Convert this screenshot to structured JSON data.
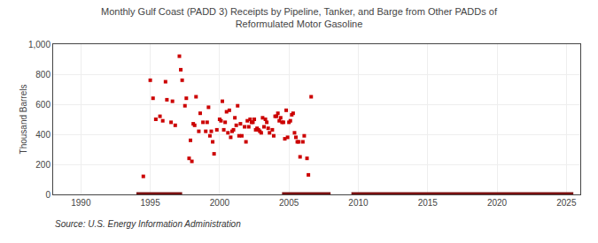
{
  "chart_data": {
    "type": "scatter",
    "title": "Monthly Gulf Coast (PADD 3) Receipts by Pipeline, Tanker, and Barge from Other PADDs of",
    "subtitle": "Reformulated Motor Gasoline",
    "ylabel": "Thousand Barrels",
    "annotations": [
      "Source: U.S. Energy Information Administration"
    ],
    "color": "#cc0000",
    "marker": "square",
    "x": [
      1994.5,
      1995.0,
      1995.2,
      1995.4,
      1995.7,
      1995.9,
      1996.1,
      1996.5,
      1996.8,
      1997.1,
      1997.3,
      1997.6,
      1997.9,
      1998.1,
      1998.3,
      1998.5,
      1998.8,
      1999.0,
      1999.2,
      1999.5,
      1999.8,
      2000.0,
      2000.2,
      2000.4,
      2000.6,
      2000.9,
      2001.1,
      2001.3,
      2001.5,
      2001.8,
      2002.0,
      2002.2,
      2002.4,
      2002.7,
      2002.9,
      2003.1,
      2003.3,
      2003.5,
      2003.8,
      2004.0,
      2004.2,
      2004.4,
      2004.6,
      2004.9,
      2005.1,
      2005.3,
      2005.5,
      2005.7,
      2006.0,
      2006.3,
      2006.6,
      1996.2,
      1996.6,
      1997.2,
      1997.5,
      1997.8,
      1998.0,
      1998.2,
      1998.6,
      1999.1,
      1999.3,
      1999.6,
      2000.1,
      2000.3,
      2000.5,
      2000.8,
      2001.0,
      2001.2,
      2001.6,
      2001.9,
      2002.1,
      2002.3,
      2002.5,
      2002.8,
      2003.0,
      2003.2,
      2003.6,
      2003.9,
      2004.1,
      2004.3,
      2004.5,
      2004.8,
      2005.0,
      2005.2,
      2005.4,
      2005.6,
      2006.1,
      2006.4,
      1999.4,
      2000.7,
      2001.4,
      2002.6,
      2003.4,
      2004.7,
      2005.8
    ],
    "values": [
      120,
      760,
      640,
      500,
      520,
      490,
      750,
      480,
      460,
      920,
      760,
      640,
      360,
      470,
      650,
      420,
      480,
      420,
      580,
      350,
      430,
      500,
      620,
      480,
      410,
      420,
      510,
      590,
      470,
      450,
      490,
      500,
      480,
      440,
      420,
      510,
      500,
      440,
      430,
      520,
      540,
      510,
      480,
      380,
      490,
      540,
      380,
      350,
      350,
      240,
      650,
      630,
      620,
      830,
      590,
      240,
      220,
      460,
      540,
      480,
      390,
      270,
      490,
      430,
      550,
      380,
      430,
      460,
      390,
      350,
      450,
      480,
      500,
      430,
      410,
      450,
      410,
      390,
      520,
      490,
      480,
      560,
      480,
      530,
      410,
      350,
      390,
      130,
      420,
      560,
      390,
      430,
      480,
      370,
      250
    ],
    "segments": {
      "x": [
        [
          1994.0,
          1997.3
        ],
        [
          2004.5,
          2008.0
        ],
        [
          2009.5,
          2025.5
        ]
      ],
      "y": 0,
      "color": "#7a1010",
      "line_style": "solid"
    },
    "xlim": [
      1988,
      2026
    ],
    "ylim": [
      0,
      1000
    ],
    "xticks": [
      1990,
      1995,
      2000,
      2005,
      2010,
      2015,
      2020,
      2025
    ],
    "yticks": [
      0,
      200,
      400,
      600,
      800,
      {
        "value": 1000,
        "label": "1,000"
      }
    ],
    "grid": true
  }
}
